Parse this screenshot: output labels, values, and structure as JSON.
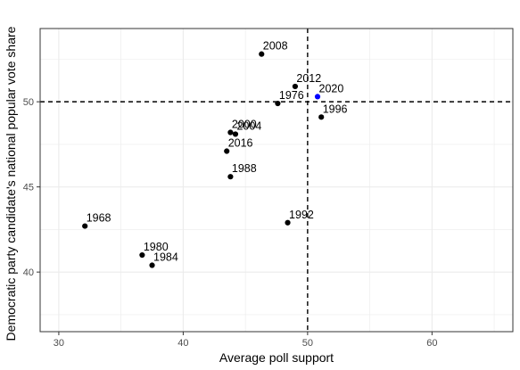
{
  "chart_data": {
    "type": "scatter",
    "title": "",
    "xlabel": "Average poll support",
    "ylabel": "Democratic party candidate's national popular vote share",
    "xlim": [
      28.5,
      66.5
    ],
    "ylim": [
      36.5,
      54.3
    ],
    "x_ticks": [
      30,
      40,
      50,
      60
    ],
    "y_ticks": [
      40,
      45,
      50
    ],
    "grid": true,
    "reference_lines": {
      "vertical_x": 50,
      "horizontal_y": 50,
      "style": "dashed"
    },
    "colors": {
      "point": "#000000",
      "highlight": "#0000ff",
      "grid": "#ebebeb",
      "panel_border": "#333333"
    },
    "points": [
      {
        "label": "1968",
        "x": 32.1,
        "y": 42.7
      },
      {
        "label": "1976",
        "x": 47.6,
        "y": 49.9
      },
      {
        "label": "1980",
        "x": 36.7,
        "y": 41.0
      },
      {
        "label": "1984",
        "x": 37.5,
        "y": 40.4
      },
      {
        "label": "1988",
        "x": 43.8,
        "y": 45.6
      },
      {
        "label": "1992",
        "x": 48.4,
        "y": 42.9
      },
      {
        "label": "1996",
        "x": 51.1,
        "y": 49.1
      },
      {
        "label": "2000",
        "x": 43.8,
        "y": 48.2
      },
      {
        "label": "2004",
        "x": 44.2,
        "y": 48.1
      },
      {
        "label": "2008",
        "x": 46.3,
        "y": 52.8
      },
      {
        "label": "2012",
        "x": 49.0,
        "y": 50.9
      },
      {
        "label": "2016",
        "x": 43.5,
        "y": 47.1
      },
      {
        "label": "2020",
        "x": 50.8,
        "y": 50.3,
        "highlight": true
      }
    ]
  }
}
